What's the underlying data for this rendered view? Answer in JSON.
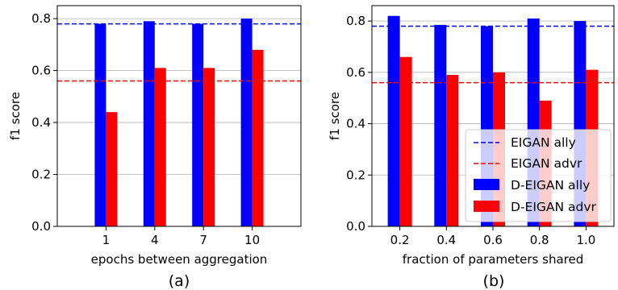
{
  "chart_data": [
    {
      "type": "bar",
      "caption": "(a)",
      "xlabel": "epochs between aggregation",
      "ylabel": "f1 score",
      "categories": [
        "1",
        "4",
        "7",
        "10"
      ],
      "ylim": [
        0,
        0.85
      ],
      "yticks": [
        0.0,
        0.2,
        0.4,
        0.6,
        0.8
      ],
      "ytick_labels": [
        "0.0",
        "0.2",
        "0.4",
        "0.6",
        "0.8"
      ],
      "grid": "horizontal",
      "legend": null,
      "series": [
        {
          "name": "D-EIGAN ally",
          "color": "#0000ff",
          "values": [
            0.78,
            0.79,
            0.78,
            0.8
          ]
        },
        {
          "name": "D-EIGAN advr",
          "color": "#ff0000",
          "values": [
            0.44,
            0.61,
            0.61,
            0.68
          ]
        }
      ],
      "hlines": [
        {
          "name": "EIGAN ally",
          "color": "#0000ff",
          "value": 0.78,
          "style": "dashed"
        },
        {
          "name": "EIGAN advr",
          "color": "#ff0000",
          "value": 0.56,
          "style": "dashed"
        }
      ]
    },
    {
      "type": "bar",
      "caption": "(b)",
      "xlabel": "fraction of parameters shared",
      "ylabel": "f1 score",
      "categories": [
        "0.2",
        "0.4",
        "0.6",
        "0.8",
        "1.0"
      ],
      "ylim": [
        0,
        0.86
      ],
      "yticks": [
        0.0,
        0.2,
        0.4,
        0.6,
        0.8
      ],
      "ytick_labels": [
        "0.0",
        "0.2",
        "0.4",
        "0.6",
        "0.8"
      ],
      "grid": "horizontal",
      "legend": "lower-right",
      "series": [
        {
          "name": "D-EIGAN ally",
          "color": "#0000ff",
          "values": [
            0.82,
            0.785,
            0.78,
            0.81,
            0.8
          ]
        },
        {
          "name": "D-EIGAN advr",
          "color": "#ff0000",
          "values": [
            0.66,
            0.59,
            0.6,
            0.49,
            0.61
          ]
        }
      ],
      "hlines": [
        {
          "name": "EIGAN ally",
          "color": "#0000ff",
          "value": 0.78,
          "style": "dashed"
        },
        {
          "name": "EIGAN advr",
          "color": "#ff0000",
          "value": 0.56,
          "style": "dashed"
        }
      ]
    }
  ]
}
